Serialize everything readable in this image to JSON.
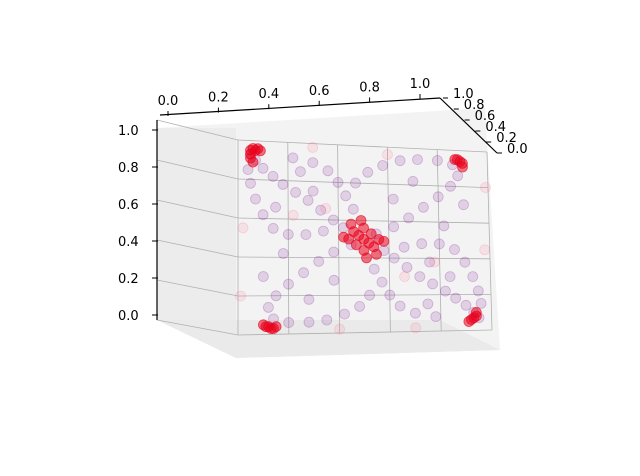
{
  "chart_data": {
    "type": "scatter",
    "projection": "3d",
    "grid": true,
    "xlim": [
      0,
      1
    ],
    "ylim": [
      0,
      1
    ],
    "zlim": [
      0,
      1
    ],
    "x_ticks": [
      "0.0",
      "0.2",
      "0.4",
      "0.6",
      "0.8",
      "1.0"
    ],
    "y_ticks": [
      "0.0",
      "0.2",
      "0.4",
      "0.6",
      "0.8",
      "1.0"
    ],
    "z_ticks": [
      "0.0",
      "0.2",
      "0.4",
      "0.6",
      "0.8",
      "1.0"
    ],
    "description": "",
    "series": [
      {
        "color": "#7a0b8f",
        "alpha": 0.15,
        "points": [
          {
            "x": 0.05,
            "z": 0.93
          },
          {
            "x": 0.07,
            "z": 0.9
          },
          {
            "x": 0.1,
            "z": 0.86
          },
          {
            "x": 0.14,
            "z": 0.82
          },
          {
            "x": 0.18,
            "z": 0.78
          },
          {
            "x": 0.23,
            "z": 0.74
          },
          {
            "x": 0.28,
            "z": 0.7
          },
          {
            "x": 0.33,
            "z": 0.65
          },
          {
            "x": 0.38,
            "z": 0.6
          },
          {
            "x": 0.42,
            "z": 0.56
          },
          {
            "x": 0.58,
            "z": 0.44
          },
          {
            "x": 0.62,
            "z": 0.4
          },
          {
            "x": 0.67,
            "z": 0.35
          },
          {
            "x": 0.72,
            "z": 0.3
          },
          {
            "x": 0.77,
            "z": 0.26
          },
          {
            "x": 0.82,
            "z": 0.22
          },
          {
            "x": 0.86,
            "z": 0.18
          },
          {
            "x": 0.9,
            "z": 0.14
          },
          {
            "x": 0.93,
            "z": 0.1
          },
          {
            "x": 0.95,
            "z": 0.07
          },
          {
            "x": 0.47,
            "z": 0.8
          },
          {
            "x": 0.52,
            "z": 0.86
          },
          {
            "x": 0.58,
            "z": 0.9
          },
          {
            "x": 0.65,
            "z": 0.93
          },
          {
            "x": 0.72,
            "z": 0.94
          },
          {
            "x": 0.8,
            "z": 0.94
          },
          {
            "x": 0.86,
            "z": 0.92
          },
          {
            "x": 0.88,
            "z": 0.86
          },
          {
            "x": 0.85,
            "z": 0.8
          },
          {
            "x": 0.8,
            "z": 0.74
          },
          {
            "x": 0.74,
            "z": 0.68
          },
          {
            "x": 0.68,
            "z": 0.62
          },
          {
            "x": 0.62,
            "z": 0.57
          },
          {
            "x": 0.55,
            "z": 0.53
          },
          {
            "x": 0.45,
            "z": 0.47
          },
          {
            "x": 0.38,
            "z": 0.43
          },
          {
            "x": 0.32,
            "z": 0.38
          },
          {
            "x": 0.26,
            "z": 0.32
          },
          {
            "x": 0.2,
            "z": 0.26
          },
          {
            "x": 0.15,
            "z": 0.2
          },
          {
            "x": 0.12,
            "z": 0.14
          },
          {
            "x": 0.14,
            "z": 0.08
          },
          {
            "x": 0.2,
            "z": 0.06
          },
          {
            "x": 0.28,
            "z": 0.06
          },
          {
            "x": 0.35,
            "z": 0.07
          },
          {
            "x": 0.42,
            "z": 0.1
          },
          {
            "x": 0.48,
            "z": 0.14
          },
          {
            "x": 0.52,
            "z": 0.2
          },
          {
            "x": 0.04,
            "z": 0.85
          },
          {
            "x": 0.05,
            "z": 0.78
          },
          {
            "x": 0.07,
            "z": 0.7
          },
          {
            "x": 0.1,
            "z": 0.62
          },
          {
            "x": 0.14,
            "z": 0.55
          },
          {
            "x": 0.2,
            "z": 0.52
          },
          {
            "x": 0.27,
            "z": 0.52
          },
          {
            "x": 0.34,
            "z": 0.54
          },
          {
            "x": 0.96,
            "z": 0.15
          },
          {
            "x": 0.95,
            "z": 0.22
          },
          {
            "x": 0.93,
            "z": 0.3
          },
          {
            "x": 0.9,
            "z": 0.38
          },
          {
            "x": 0.86,
            "z": 0.45
          },
          {
            "x": 0.8,
            "z": 0.48
          },
          {
            "x": 0.73,
            "z": 0.48
          },
          {
            "x": 0.66,
            "z": 0.46
          },
          {
            "x": 0.22,
            "z": 0.92
          },
          {
            "x": 0.3,
            "z": 0.9
          },
          {
            "x": 0.36,
            "z": 0.86
          },
          {
            "x": 0.4,
            "z": 0.8
          },
          {
            "x": 0.43,
            "z": 0.73
          },
          {
            "x": 0.46,
            "z": 0.66
          },
          {
            "x": 0.78,
            "z": 0.08
          },
          {
            "x": 0.7,
            "z": 0.1
          },
          {
            "x": 0.64,
            "z": 0.14
          },
          {
            "x": 0.6,
            "z": 0.2
          },
          {
            "x": 0.57,
            "z": 0.27
          },
          {
            "x": 0.54,
            "z": 0.34
          },
          {
            "x": 0.3,
            "z": 0.75
          },
          {
            "x": 0.15,
            "z": 0.66
          },
          {
            "x": 0.62,
            "z": 0.72
          },
          {
            "x": 0.7,
            "z": 0.82
          },
          {
            "x": 0.38,
            "z": 0.28
          },
          {
            "x": 0.28,
            "z": 0.18
          },
          {
            "x": 0.76,
            "z": 0.38
          },
          {
            "x": 0.84,
            "z": 0.3
          },
          {
            "x": 0.1,
            "z": 0.3
          },
          {
            "x": 0.9,
            "z": 0.7
          },
          {
            "x": 0.18,
            "z": 0.42
          },
          {
            "x": 0.82,
            "z": 0.58
          },
          {
            "x": 0.25,
            "z": 0.85
          },
          {
            "x": 0.75,
            "z": 0.15
          }
        ]
      },
      {
        "color": "#e8001c",
        "alpha": 0.55,
        "points": [
          {
            "x": 0.05,
            "z": 0.95
          },
          {
            "x": 0.06,
            "z": 0.96
          },
          {
            "x": 0.07,
            "z": 0.95
          },
          {
            "x": 0.08,
            "z": 0.96
          },
          {
            "x": 0.09,
            "z": 0.95
          },
          {
            "x": 0.05,
            "z": 0.93
          },
          {
            "x": 0.05,
            "z": 0.91
          },
          {
            "x": 0.06,
            "z": 0.89
          },
          {
            "x": 0.88,
            "z": 0.95
          },
          {
            "x": 0.89,
            "z": 0.94
          },
          {
            "x": 0.9,
            "z": 0.93
          },
          {
            "x": 0.9,
            "z": 0.91
          },
          {
            "x": 0.87,
            "z": 0.95
          },
          {
            "x": 0.1,
            "z": 0.05
          },
          {
            "x": 0.11,
            "z": 0.04
          },
          {
            "x": 0.12,
            "z": 0.04
          },
          {
            "x": 0.13,
            "z": 0.03
          },
          {
            "x": 0.14,
            "z": 0.03
          },
          {
            "x": 0.15,
            "z": 0.04
          },
          {
            "x": 0.92,
            "z": 0.06
          },
          {
            "x": 0.93,
            "z": 0.07
          },
          {
            "x": 0.94,
            "z": 0.08
          },
          {
            "x": 0.94,
            "z": 0.1
          },
          {
            "x": 0.91,
            "z": 0.05
          },
          {
            "x": 0.5,
            "z": 0.5
          },
          {
            "x": 0.48,
            "z": 0.52
          },
          {
            "x": 0.52,
            "z": 0.48
          },
          {
            "x": 0.46,
            "z": 0.54
          },
          {
            "x": 0.54,
            "z": 0.46
          },
          {
            "x": 0.44,
            "z": 0.5
          },
          {
            "x": 0.56,
            "z": 0.5
          },
          {
            "x": 0.5,
            "z": 0.56
          },
          {
            "x": 0.5,
            "z": 0.44
          },
          {
            "x": 0.47,
            "z": 0.47
          },
          {
            "x": 0.53,
            "z": 0.53
          },
          {
            "x": 0.42,
            "z": 0.51
          },
          {
            "x": 0.58,
            "z": 0.49
          },
          {
            "x": 0.49,
            "z": 0.6
          },
          {
            "x": 0.51,
            "z": 0.4
          },
          {
            "x": 0.45,
            "z": 0.58
          },
          {
            "x": 0.55,
            "z": 0.42
          }
        ]
      },
      {
        "color": "#ff6080",
        "alpha": 0.12,
        "points": [
          {
            "x": 0.02,
            "z": 0.55
          },
          {
            "x": 0.98,
            "z": 0.45
          },
          {
            "x": 0.3,
            "z": 0.98
          },
          {
            "x": 0.7,
            "z": 0.02
          },
          {
            "x": 0.6,
            "z": 0.96
          },
          {
            "x": 0.4,
            "z": 0.02
          },
          {
            "x": 0.99,
            "z": 0.8
          },
          {
            "x": 0.01,
            "z": 0.2
          },
          {
            "x": 0.22,
            "z": 0.62
          },
          {
            "x": 0.78,
            "z": 0.38
          },
          {
            "x": 0.35,
            "z": 0.66
          },
          {
            "x": 0.66,
            "z": 0.3
          }
        ]
      }
    ]
  }
}
